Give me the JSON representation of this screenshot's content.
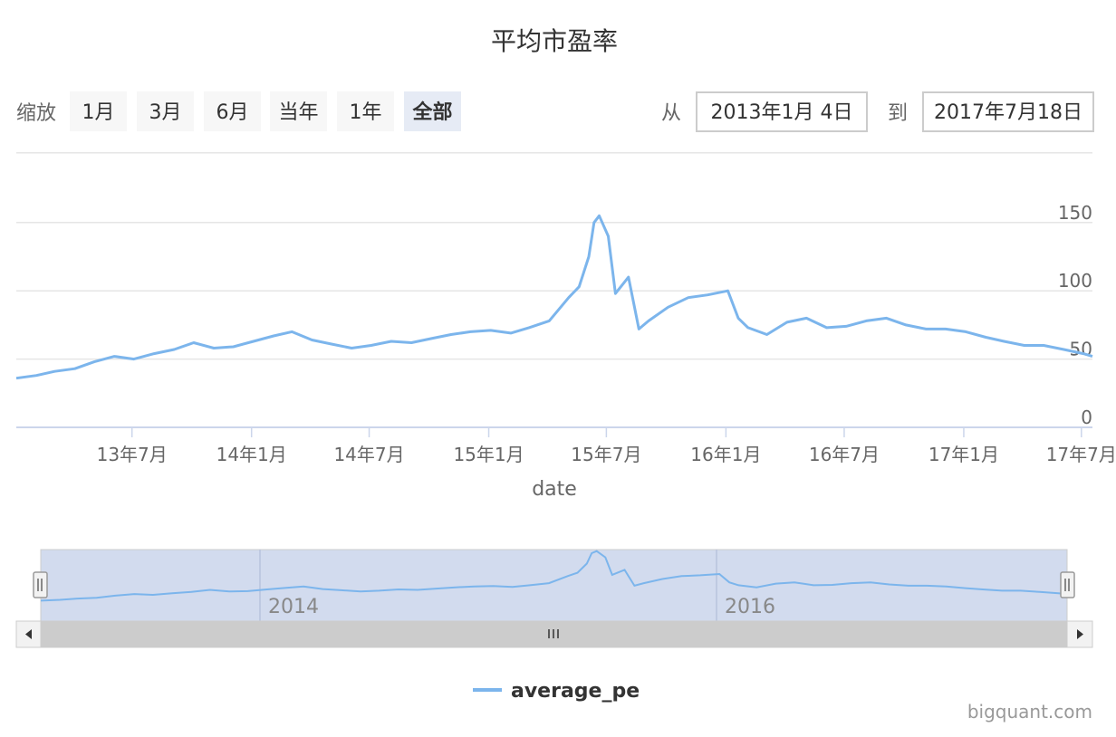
{
  "title": "平均市盈率",
  "range_selector": {
    "zoom_label": "缩放",
    "buttons": [
      {
        "label": "1月",
        "selected": false
      },
      {
        "label": "3月",
        "selected": false
      },
      {
        "label": "6月",
        "selected": false
      },
      {
        "label": "当年",
        "selected": false
      },
      {
        "label": "1年",
        "selected": false
      },
      {
        "label": "全部",
        "selected": true
      }
    ],
    "from_label": "从",
    "from_value": "2013年1月 4日",
    "to_label": "到",
    "to_value": "2017年7月18日"
  },
  "navigator": {
    "year_labels": [
      "2014",
      "2016"
    ]
  },
  "credit": "bigquant.com",
  "colors": {
    "series": "#7cb5ec",
    "grid": "#e6e6e6",
    "axis": "#ccd6eb",
    "button_bg": "#f7f7f7",
    "button_selected_bg": "#e6ebf5",
    "navigator_mask": "#d2dbee",
    "scrollbar_bg": "#cccccc"
  },
  "chart_data": {
    "type": "line",
    "title": "平均市盈率",
    "xlabel": "date",
    "ylabel": "",
    "x_range": [
      "2013-01-04",
      "2017-07-18"
    ],
    "ylim": [
      0,
      170
    ],
    "y_ticks": [
      0,
      50,
      100,
      150
    ],
    "x_tick_labels": [
      {
        "date": "2013-07-01",
        "label": "13年7月"
      },
      {
        "date": "2014-01-01",
        "label": "14年1月"
      },
      {
        "date": "2014-07-01",
        "label": "14年7月"
      },
      {
        "date": "2015-01-01",
        "label": "15年1月"
      },
      {
        "date": "2015-07-01",
        "label": "15年7月"
      },
      {
        "date": "2016-01-01",
        "label": "16年1月"
      },
      {
        "date": "2016-07-01",
        "label": "16年7月"
      },
      {
        "date": "2017-01-01",
        "label": "17年1月"
      },
      {
        "date": "2017-07-01",
        "label": "17年7月"
      }
    ],
    "legend": {
      "position": "bottom-center"
    },
    "grid": true,
    "series": [
      {
        "name": "average_pe",
        "x": [
          "2013-01-04",
          "2013-02-04",
          "2013-03-04",
          "2013-04-04",
          "2013-05-04",
          "2013-06-04",
          "2013-07-04",
          "2013-08-04",
          "2013-09-04",
          "2013-10-04",
          "2013-11-04",
          "2013-12-04",
          "2014-01-04",
          "2014-02-04",
          "2014-03-04",
          "2014-04-04",
          "2014-05-04",
          "2014-06-04",
          "2014-07-04",
          "2014-08-04",
          "2014-09-04",
          "2014-10-04",
          "2014-11-04",
          "2014-12-04",
          "2015-01-04",
          "2015-02-04",
          "2015-03-04",
          "2015-04-04",
          "2015-05-04",
          "2015-05-20",
          "2015-06-04",
          "2015-06-12",
          "2015-06-20",
          "2015-07-04",
          "2015-07-15",
          "2015-08-04",
          "2015-08-20",
          "2015-09-04",
          "2015-10-04",
          "2015-11-04",
          "2015-12-04",
          "2016-01-04",
          "2016-01-20",
          "2016-02-04",
          "2016-03-04",
          "2016-04-04",
          "2016-05-04",
          "2016-06-04",
          "2016-07-04",
          "2016-08-04",
          "2016-09-04",
          "2016-10-04",
          "2016-11-04",
          "2016-12-04",
          "2017-01-04",
          "2017-02-04",
          "2017-03-04",
          "2017-04-04",
          "2017-05-04",
          "2017-06-04",
          "2017-07-04",
          "2017-07-18"
        ],
        "y": [
          36,
          38,
          41,
          43,
          48,
          52,
          50,
          54,
          57,
          62,
          58,
          59,
          63,
          67,
          70,
          64,
          61,
          58,
          60,
          63,
          62,
          65,
          68,
          70,
          71,
          69,
          73,
          78,
          95,
          103,
          125,
          150,
          155,
          140,
          98,
          110,
          72,
          78,
          88,
          95,
          97,
          100,
          80,
          73,
          68,
          77,
          80,
          73,
          74,
          78,
          80,
          75,
          72,
          72,
          70,
          66,
          63,
          60,
          60,
          57,
          54,
          52
        ]
      }
    ]
  }
}
